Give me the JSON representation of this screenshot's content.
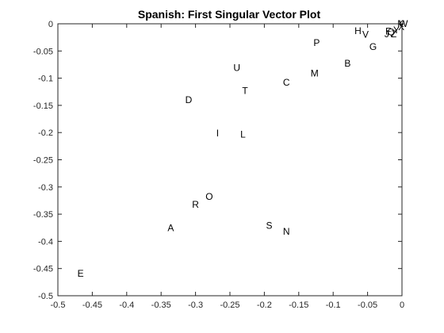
{
  "chart_data": {
    "type": "scatter",
    "title": "Spanish: First Singular Vector Plot",
    "xlabel": "",
    "ylabel": "",
    "xlim": [
      -0.5,
      0
    ],
    "ylim": [
      -0.5,
      0
    ],
    "grid": false,
    "legend": "none",
    "x_ticks": [
      "-0.5",
      "-0.45",
      "-0.4",
      "-0.35",
      "-0.3",
      "-0.25",
      "-0.2",
      "-0.15",
      "-0.1",
      "-0.05",
      "0"
    ],
    "y_ticks": [
      "0",
      "-0.05",
      "-0.1",
      "-0.15",
      "-0.2",
      "-0.25",
      "-0.3",
      "-0.35",
      "-0.4",
      "-0.45",
      "-0.5"
    ],
    "points": [
      {
        "label": "E",
        "x": -0.467,
        "y": -0.459
      },
      {
        "label": "A",
        "x": -0.336,
        "y": -0.375
      },
      {
        "label": "R",
        "x": -0.3,
        "y": -0.332
      },
      {
        "label": "O",
        "x": -0.28,
        "y": -0.318
      },
      {
        "label": "S",
        "x": -0.193,
        "y": -0.371
      },
      {
        "label": "N",
        "x": -0.168,
        "y": -0.382
      },
      {
        "label": "I",
        "x": -0.268,
        "y": -0.201
      },
      {
        "label": "L",
        "x": -0.231,
        "y": -0.203
      },
      {
        "label": "D",
        "x": -0.31,
        "y": -0.14
      },
      {
        "label": "U",
        "x": -0.24,
        "y": -0.081
      },
      {
        "label": "T",
        "x": -0.228,
        "y": -0.123
      },
      {
        "label": "C",
        "x": -0.168,
        "y": -0.108
      },
      {
        "label": "M",
        "x": -0.127,
        "y": -0.091
      },
      {
        "label": "P",
        "x": -0.124,
        "y": -0.035
      },
      {
        "label": "B",
        "x": -0.079,
        "y": -0.073
      },
      {
        "label": "H",
        "x": -0.064,
        "y": -0.013
      },
      {
        "label": "V",
        "x": -0.053,
        "y": -0.02
      },
      {
        "label": "G",
        "x": -0.042,
        "y": -0.042
      },
      {
        "label": "F",
        "x": -0.02,
        "y": -0.014
      },
      {
        "label": "Q",
        "x": -0.016,
        "y": -0.015
      },
      {
        "label": "J",
        "x": -0.022,
        "y": -0.019
      },
      {
        "label": "Z",
        "x": -0.012,
        "y": -0.019
      },
      {
        "label": "Y",
        "x": -0.008,
        "y": -0.012
      },
      {
        "label": "X",
        "x": -0.001,
        "y": -0.006
      },
      {
        "label": "K",
        "x": -0.002,
        "y": 0
      },
      {
        "label": "W",
        "x": 0.002,
        "y": 0
      }
    ]
  }
}
